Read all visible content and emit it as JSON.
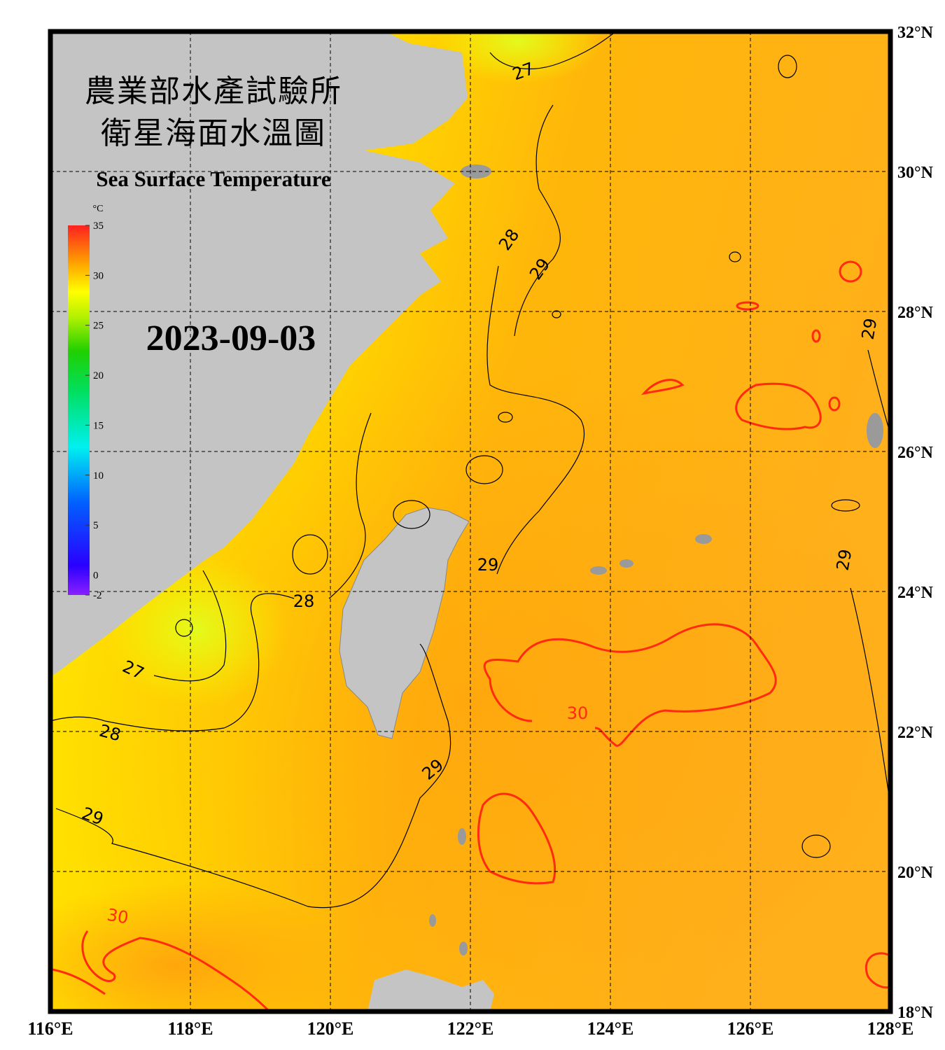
{
  "header": {
    "title_zh": "農業部水產試驗所",
    "subtitle_zh": "衛星海面水溫圖",
    "title_en": "Sea Surface Temperature",
    "date": "2023-09-03"
  },
  "colorbar": {
    "unit": "°C",
    "range": [
      -2,
      35
    ],
    "ticks": [
      35,
      30,
      25,
      20,
      15,
      10,
      5,
      0,
      -2
    ]
  },
  "axes": {
    "lon_range": [
      116,
      128
    ],
    "lat_range": [
      18,
      32
    ],
    "x_ticks": [
      {
        "value": 116,
        "label": "116°E"
      },
      {
        "value": 118,
        "label": "118°E"
      },
      {
        "value": 120,
        "label": "120°E"
      },
      {
        "value": 122,
        "label": "122°E"
      },
      {
        "value": 124,
        "label": "124°E"
      },
      {
        "value": 126,
        "label": "126°E"
      },
      {
        "value": 128,
        "label": "128°E"
      }
    ],
    "y_ticks": [
      {
        "value": 32,
        "label": "32°N"
      },
      {
        "value": 30,
        "label": "30°N"
      },
      {
        "value": 28,
        "label": "28°N"
      },
      {
        "value": 26,
        "label": "26°N"
      },
      {
        "value": 24,
        "label": "24°N"
      },
      {
        "value": 22,
        "label": "22°N"
      },
      {
        "value": 20,
        "label": "20°N"
      },
      {
        "value": 18,
        "label": "18°N"
      }
    ]
  },
  "contour_labels": [
    27,
    28,
    29,
    29,
    28,
    29,
    27,
    28,
    29,
    29,
    30,
    30,
    29
  ]
}
